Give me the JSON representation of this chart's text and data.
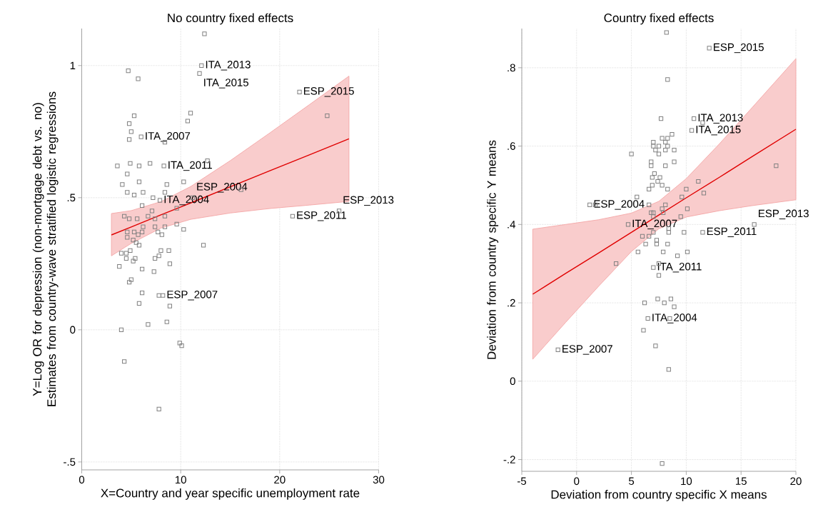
{
  "chart_data": [
    {
      "type": "scatter",
      "title": "No country fixed effects",
      "xlabel": "X=Country and year specific unemployment rate",
      "ylabel": "Y=Log OR for depression (non-mortgage debt vs. no) Estimates from country-wave stratified logistic regressions",
      "xlim": [
        0,
        30
      ],
      "ylim": [
        -0.53,
        1.14
      ],
      "xticks": [
        0,
        10,
        20,
        30
      ],
      "yticks": [
        {
          "value": -0.5,
          "label": "-.5"
        },
        0,
        {
          "value": 0.5,
          "label": ".5"
        },
        1
      ],
      "grid": true,
      "annotations": [
        {
          "text": "ITA_2013",
          "x": 12.1,
          "y": 1.0
        },
        {
          "text": "ITA_2015",
          "x": 11.9,
          "y": 0.97
        },
        {
          "text": "ESP_2015",
          "x": 22.0,
          "y": 0.9
        },
        {
          "text": "ITA_2007",
          "x": 6.0,
          "y": 0.73
        },
        {
          "text": "ITA_2011",
          "x": 8.3,
          "y": 0.62
        },
        {
          "text": "ITA_2004",
          "x": 7.9,
          "y": 0.49
        },
        {
          "text": "ESP_2004",
          "x": 11.2,
          "y": 0.5
        },
        {
          "text": "ESP_2011",
          "x": 21.3,
          "y": 0.43
        },
        {
          "text": "ESP_2013",
          "x": 26.0,
          "y": 0.45
        },
        {
          "text": "ESP_2007",
          "x": 8.2,
          "y": 0.13
        }
      ],
      "series": [
        {
          "type": "line",
          "color": "#e00000",
          "x": [
            3,
            5,
            8,
            11,
            15,
            19,
            23,
            27
          ],
          "values": [
            0.359,
            0.389,
            0.435,
            0.48,
            0.541,
            0.602,
            0.662,
            0.723
          ],
          "lower": [
            0.28,
            0.327,
            0.385,
            0.418,
            0.442,
            0.459,
            0.472,
            0.486
          ],
          "upper": [
            0.44,
            0.451,
            0.485,
            0.542,
            0.64,
            0.745,
            0.852,
            0.96
          ]
        },
        {
          "marker": "square",
          "color": "#808080",
          "x": [
            12.4,
            12.1,
            11.9,
            4.7,
            5.7,
            22.0,
            24.8,
            5.3,
            11.0,
            4.8,
            10.7,
            5.0,
            6.0,
            4.8,
            8.4,
            12.7,
            3.6,
            4.9,
            5.8,
            6.9,
            8.3,
            4.6,
            4.1,
            5.8,
            10.3,
            8.6,
            4.6,
            5.3,
            6.2,
            8.4,
            16.1,
            7.2,
            7.9,
            11.2,
            6.1,
            9.6,
            4.3,
            4.8,
            5.6,
            6.7,
            7.1,
            7.4,
            8.4,
            21.3,
            26.0,
            6.2,
            7.4,
            8.4,
            9.6,
            10.3,
            4.6,
            5.3,
            6.1,
            7.7,
            4.6,
            5.7,
            8.1,
            5.2,
            5.5,
            5.8,
            12.3,
            4.0,
            4.5,
            4.9,
            8.0,
            8.8,
            7.8,
            4.5,
            5.4,
            7.4,
            5.2,
            8.9,
            3.8,
            6.1,
            7.3,
            5.0,
            4.8,
            6.1,
            7.8,
            8.2,
            5.8,
            8.9,
            6.7,
            8.6,
            4.0,
            9.9,
            10.1,
            4.3,
            7.8
          ],
          "values": [
            1.12,
            1.0,
            0.97,
            0.98,
            0.95,
            0.9,
            0.81,
            0.81,
            0.82,
            0.78,
            0.79,
            0.75,
            0.73,
            0.72,
            0.71,
            0.64,
            0.62,
            0.63,
            0.62,
            0.63,
            0.62,
            0.59,
            0.55,
            0.56,
            0.56,
            0.55,
            0.52,
            0.51,
            0.52,
            0.52,
            0.53,
            0.5,
            0.49,
            0.5,
            0.47,
            0.46,
            0.43,
            0.42,
            0.42,
            0.43,
            0.45,
            0.42,
            0.43,
            0.43,
            0.45,
            0.39,
            0.39,
            0.39,
            0.4,
            0.38,
            0.37,
            0.37,
            0.37,
            0.37,
            0.35,
            0.36,
            0.36,
            0.34,
            0.33,
            0.32,
            0.32,
            0.29,
            0.29,
            0.3,
            0.3,
            0.3,
            0.28,
            0.27,
            0.27,
            0.27,
            0.26,
            0.25,
            0.24,
            0.23,
            0.22,
            0.19,
            0.18,
            0.14,
            0.13,
            0.13,
            0.1,
            0.09,
            0.02,
            0.03,
            0.0,
            -0.05,
            -0.06,
            -0.12,
            -0.3
          ]
        }
      ]
    },
    {
      "type": "scatter",
      "title": "Country fixed effects",
      "xlabel": "Deviation from country specific X means",
      "ylabel": "Deviation from country specific Y means",
      "xlim": [
        -5,
        20
      ],
      "ylim": [
        -0.23,
        0.9
      ],
      "xticks": [
        -5,
        0,
        5,
        10,
        15,
        20
      ],
      "yticks": [
        {
          "value": -0.2,
          "label": "-.2"
        },
        0,
        {
          "value": 0.2,
          "label": ".2"
        },
        {
          "value": 0.4,
          "label": ".4"
        },
        {
          "value": 0.6,
          "label": ".6"
        },
        {
          "value": 0.8,
          "label": ".8"
        }
      ],
      "grid": true,
      "annotations": [
        {
          "text": "ESP_2015",
          "x": 12.1,
          "y": 0.85
        },
        {
          "text": "ITA_2013",
          "x": 10.7,
          "y": 0.67
        },
        {
          "text": "ITA_2015",
          "x": 10.5,
          "y": 0.64
        },
        {
          "text": "ESP_2004",
          "x": 1.2,
          "y": 0.45
        },
        {
          "text": "ITA_2007",
          "x": 4.7,
          "y": 0.4
        },
        {
          "text": "ESP_2011",
          "x": 11.5,
          "y": 0.38
        },
        {
          "text": "ESP_2013",
          "x": 16.2,
          "y": 0.4
        },
        {
          "text": "ITA_2011",
          "x": 7.0,
          "y": 0.29
        },
        {
          "text": "ITA_2004",
          "x": 6.5,
          "y": 0.16
        },
        {
          "text": "ESP_2007",
          "x": -1.7,
          "y": 0.08
        }
      ],
      "series": [
        {
          "type": "line",
          "color": "#e00000",
          "x": [
            -4,
            -1,
            2,
            5,
            7.5,
            10,
            13,
            16,
            20
          ],
          "values": [
            0.222,
            0.275,
            0.327,
            0.38,
            0.424,
            0.468,
            0.52,
            0.573,
            0.643
          ],
          "lower": [
            0.056,
            0.15,
            0.242,
            0.331,
            0.389,
            0.419,
            0.435,
            0.448,
            0.463
          ],
          "upper": [
            0.388,
            0.4,
            0.412,
            0.429,
            0.459,
            0.517,
            0.605,
            0.698,
            0.823
          ]
        },
        {
          "marker": "square",
          "color": "#808080",
          "x": [
            8.2,
            12.1,
            8.3,
            7.7,
            10.7,
            11.5,
            10.5,
            18.2,
            8.7,
            8.3,
            7.8,
            8.1,
            7.0,
            7.5,
            7.0,
            7.2,
            8.1,
            8.3,
            8.9,
            5.0,
            7.5,
            6.8,
            6.8,
            8.1,
            8.9,
            7.1,
            6.9,
            7.6,
            7.4,
            6.9,
            6.6,
            7.8,
            8.3,
            11.1,
            10.0,
            11.6,
            9.6,
            5.5,
            1.2,
            1.7,
            6.6,
            8.1,
            6.8,
            7.0,
            7.8,
            7.9,
            10.1,
            9.5,
            7.0,
            4.7,
            8.4,
            7.0,
            8.4,
            9.8,
            11.5,
            16.2,
            6.6,
            6.0,
            7.3,
            7.3,
            6.3,
            8.3,
            7.9,
            5.6,
            10.1,
            9.2,
            3.6,
            7.0,
            7.5,
            7.5,
            6.2,
            7.4,
            8.6,
            8.0,
            8.9,
            6.5,
            8.5,
            6.1,
            7.2,
            -1.7,
            8.4,
            7.8
          ],
          "values": [
            0.89,
            0.85,
            0.77,
            0.67,
            0.67,
            0.66,
            0.64,
            0.55,
            0.63,
            0.62,
            0.62,
            0.61,
            0.61,
            0.6,
            0.6,
            0.59,
            0.59,
            0.6,
            0.59,
            0.58,
            0.58,
            0.56,
            0.55,
            0.55,
            0.56,
            0.53,
            0.52,
            0.52,
            0.51,
            0.5,
            0.49,
            0.5,
            0.49,
            0.51,
            0.49,
            0.48,
            0.47,
            0.47,
            0.45,
            0.45,
            0.45,
            0.45,
            0.43,
            0.43,
            0.44,
            0.43,
            0.44,
            0.42,
            0.42,
            0.4,
            0.39,
            0.38,
            0.38,
            0.38,
            0.38,
            0.4,
            0.37,
            0.37,
            0.36,
            0.35,
            0.35,
            0.35,
            0.33,
            0.33,
            0.33,
            0.32,
            0.3,
            0.29,
            0.3,
            0.27,
            0.2,
            0.21,
            0.21,
            0.2,
            0.19,
            0.16,
            0.16,
            0.13,
            0.09,
            0.08,
            0.03,
            -0.21
          ]
        }
      ]
    }
  ]
}
